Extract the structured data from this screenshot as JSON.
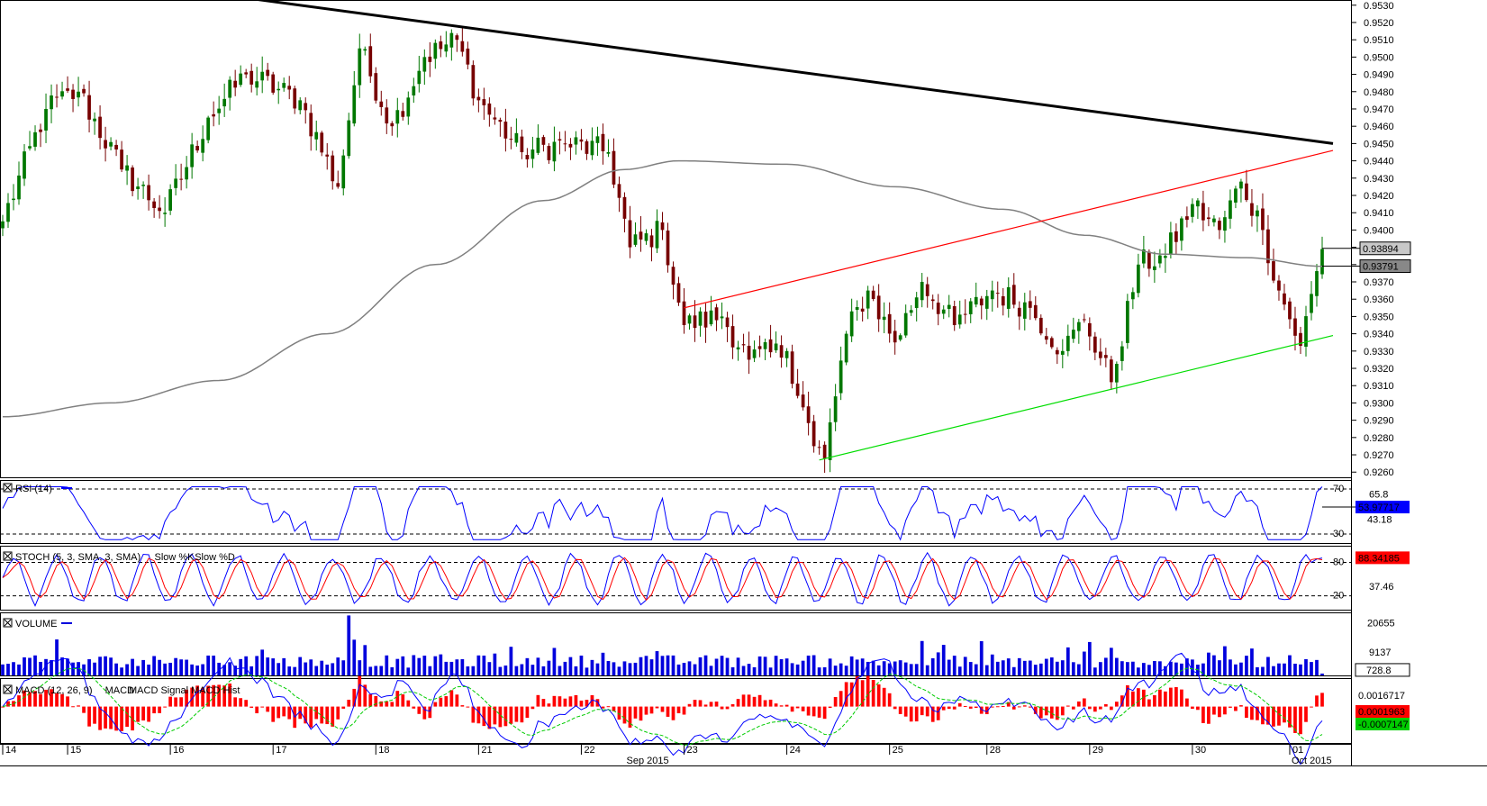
{
  "chart_data": {
    "type": "candlestick",
    "instrument_last_price": "0.93894",
    "sma_value_label": "0.93791",
    "price_axis": {
      "ylim": [
        0.9257,
        0.9533
      ],
      "ticks": [
        "0.9260",
        "0.9270",
        "0.9280",
        "0.9290",
        "0.9300",
        "0.9310",
        "0.9320",
        "0.9330",
        "0.9340",
        "0.9350",
        "0.9360",
        "0.9370",
        "0.9380",
        "0.9390",
        "0.9400",
        "0.9410",
        "0.9420",
        "0.9430",
        "0.9440",
        "0.9450",
        "0.9460",
        "0.9470",
        "0.9480",
        "0.9490",
        "0.9500",
        "0.9510",
        "0.9520",
        "0.9530"
      ]
    },
    "candles": {
      "count": 245,
      "anchors": [
        {
          "i": 0,
          "close": 0.9405
        },
        {
          "i": 8,
          "close": 0.947
        },
        {
          "i": 14,
          "close": 0.948
        },
        {
          "i": 22,
          "close": 0.9435
        },
        {
          "i": 30,
          "close": 0.941
        },
        {
          "i": 38,
          "close": 0.9465
        },
        {
          "i": 45,
          "close": 0.949
        },
        {
          "i": 55,
          "close": 0.9475
        },
        {
          "i": 62,
          "close": 0.9425
        },
        {
          "i": 66,
          "close": 0.9505
        },
        {
          "i": 72,
          "close": 0.946
        },
        {
          "i": 78,
          "close": 0.95
        },
        {
          "i": 84,
          "close": 0.951
        },
        {
          "i": 88,
          "close": 0.9475
        },
        {
          "i": 96,
          "close": 0.9445
        },
        {
          "i": 104,
          "close": 0.945
        },
        {
          "i": 112,
          "close": 0.9445
        },
        {
          "i": 116,
          "close": 0.939
        },
        {
          "i": 122,
          "close": 0.94
        },
        {
          "i": 126,
          "close": 0.9345
        },
        {
          "i": 133,
          "close": 0.935
        },
        {
          "i": 138,
          "close": 0.9325
        },
        {
          "i": 145,
          "close": 0.933
        },
        {
          "i": 150,
          "close": 0.9275
        },
        {
          "i": 152,
          "close": 0.9268
        },
        {
          "i": 156,
          "close": 0.934
        },
        {
          "i": 160,
          "close": 0.9365
        },
        {
          "i": 165,
          "close": 0.9335
        },
        {
          "i": 170,
          "close": 0.937
        },
        {
          "i": 176,
          "close": 0.9345
        },
        {
          "i": 183,
          "close": 0.9365
        },
        {
          "i": 190,
          "close": 0.9355
        },
        {
          "i": 196,
          "close": 0.933
        },
        {
          "i": 200,
          "close": 0.9348
        },
        {
          "i": 205,
          "close": 0.9312
        },
        {
          "i": 210,
          "close": 0.938
        },
        {
          "i": 215,
          "close": 0.9385
        },
        {
          "i": 220,
          "close": 0.9415
        },
        {
          "i": 225,
          "close": 0.94
        },
        {
          "i": 229,
          "close": 0.9428
        },
        {
          "i": 233,
          "close": 0.94
        },
        {
          "i": 236,
          "close": 0.9365
        },
        {
          "i": 240,
          "close": 0.9333
        },
        {
          "i": 244,
          "close": 0.9389
        }
      ]
    },
    "sma": {
      "points": [
        {
          "i": 0,
          "v": 0.9292
        },
        {
          "i": 20,
          "v": 0.93
        },
        {
          "i": 40,
          "v": 0.9313
        },
        {
          "i": 60,
          "v": 0.934
        },
        {
          "i": 80,
          "v": 0.938
        },
        {
          "i": 100,
          "v": 0.9417
        },
        {
          "i": 115,
          "v": 0.9435
        },
        {
          "i": 125,
          "v": 0.944
        },
        {
          "i": 145,
          "v": 0.9438
        },
        {
          "i": 165,
          "v": 0.9425
        },
        {
          "i": 185,
          "v": 0.9412
        },
        {
          "i": 200,
          "v": 0.9397
        },
        {
          "i": 215,
          "v": 0.9386
        },
        {
          "i": 230,
          "v": 0.9384
        },
        {
          "i": 244,
          "v": 0.9379
        }
      ]
    },
    "trendlines": [
      {
        "name": "resistance",
        "color": "#000000",
        "from": {
          "i": 43,
          "v": 0.9535
        },
        "to": {
          "i": 246,
          "v": 0.945
        }
      },
      {
        "name": "upper-channel",
        "color": "#ff0000",
        "from": {
          "i": 126,
          "v": 0.9355
        },
        "to": {
          "i": 246,
          "v": 0.9446
        }
      },
      {
        "name": "lower-channel",
        "color": "#00dd00",
        "from": {
          "i": 151,
          "v": 0.9267
        },
        "to": {
          "i": 246,
          "v": 0.9339
        }
      }
    ],
    "x_axis": {
      "day_labels": [
        {
          "i": 0,
          "label": "14"
        },
        {
          "i": 12,
          "label": "15"
        },
        {
          "i": 31,
          "label": "16"
        },
        {
          "i": 50,
          "label": "17"
        },
        {
          "i": 69,
          "label": "18"
        },
        {
          "i": 88,
          "label": "21"
        },
        {
          "i": 107,
          "label": "22"
        },
        {
          "i": 126,
          "label": "23"
        },
        {
          "i": 145,
          "label": "24"
        },
        {
          "i": 164,
          "label": "25"
        },
        {
          "i": 182,
          "label": "28"
        },
        {
          "i": 201,
          "label": "29"
        },
        {
          "i": 220,
          "label": "30"
        },
        {
          "i": 238,
          "label": "01"
        }
      ],
      "month_labels": [
        {
          "i": 119,
          "label": "Sep 2015"
        },
        {
          "i": 242,
          "label": "Oct 2015"
        }
      ]
    },
    "rsi": {
      "title": "RSI (14)",
      "levels": [
        "70",
        "30"
      ],
      "axis_labels": [
        "65.8",
        "43.18"
      ],
      "current": "53.97717"
    },
    "stoch": {
      "title": "STOCH (5, 3, SMA, 3, SMA)",
      "slow_k": "Slow %K",
      "slow_d": "Slow %D",
      "levels": [
        "80",
        "20"
      ],
      "axis_labels": [
        "37.46"
      ],
      "current": "88.34185"
    },
    "volume": {
      "title": "VOLUME",
      "axis_labels": [
        "20655",
        "9137"
      ],
      "current": "728.8"
    },
    "macd": {
      "title": "MACD (12, 26, 9)",
      "line_label": "MACD",
      "signal_label": "MACD Signal",
      "hist_label": "MACD Hist",
      "axis_labels": [
        "0.0016717"
      ],
      "current_hist": "0.0001963",
      "current_macd": "-0.0007147"
    },
    "colors": {
      "bull": "#007700",
      "bear": "#770000",
      "sma": "#808080",
      "rsi": "#0000ff",
      "stoch_k": "#0000ff",
      "stoch_d": "#ff0000",
      "volume": "#0000dd",
      "macd": "#0000ff",
      "signal": "#00cc00",
      "hist": "#ff0000"
    }
  }
}
